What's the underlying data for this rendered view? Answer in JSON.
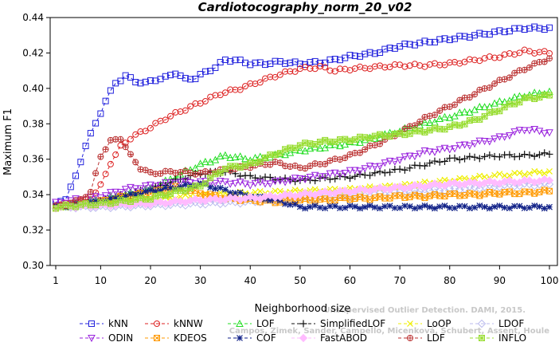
{
  "chart_data": {
    "type": "line",
    "title": "Cardiotocography_norm_20_v02",
    "xlabel": "Neighborhood size",
    "ylabel": "Maximum F1",
    "xlim": [
      1,
      100
    ],
    "ylim": [
      0.3,
      0.44
    ],
    "xticks": [
      1,
      10,
      20,
      30,
      40,
      50,
      60,
      70,
      80,
      90,
      100
    ],
    "yticks": [
      0.3,
      0.32,
      0.34,
      0.36,
      0.38,
      0.4,
      0.42,
      0.44
    ],
    "ytick_labels": [
      "0.30",
      "0.32",
      "0.34",
      "0.36",
      "0.38",
      "0.40",
      "0.42",
      "0.44"
    ],
    "grid": false,
    "legend_position": "bottom",
    "watermark": [
      "Campos, Zimek, Sander, Campello, Micenková, Schubert, Assent, Houle",
      "Unsupervised Outlier Detection. DAMI, 2015."
    ],
    "series": [
      {
        "name": "kNN",
        "color": "#2222dd",
        "marker": "square",
        "line": "dashed",
        "points": [
          [
            1,
            0.335
          ],
          [
            3,
            0.338
          ],
          [
            5,
            0.35
          ],
          [
            7,
            0.368
          ],
          [
            9,
            0.38
          ],
          [
            11,
            0.393
          ],
          [
            13,
            0.403
          ],
          [
            15,
            0.407
          ],
          [
            17,
            0.404
          ],
          [
            19,
            0.403
          ],
          [
            21,
            0.405
          ],
          [
            23,
            0.406
          ],
          [
            25,
            0.409
          ],
          [
            27,
            0.405
          ],
          [
            29,
            0.406
          ],
          [
            31,
            0.409
          ],
          [
            33,
            0.412
          ],
          [
            35,
            0.416
          ],
          [
            37,
            0.416
          ],
          [
            40,
            0.414
          ],
          [
            43,
            0.414
          ],
          [
            46,
            0.415
          ],
          [
            50,
            0.414
          ],
          [
            55,
            0.415
          ],
          [
            60,
            0.418
          ],
          [
            65,
            0.42
          ],
          [
            70,
            0.424
          ],
          [
            75,
            0.426
          ],
          [
            80,
            0.428
          ],
          [
            85,
            0.43
          ],
          [
            90,
            0.432
          ],
          [
            95,
            0.434
          ],
          [
            100,
            0.434
          ]
        ]
      },
      {
        "name": "kNNW",
        "color": "#dd2222",
        "marker": "circle",
        "line": "dashed",
        "points": [
          [
            1,
            0.334
          ],
          [
            5,
            0.335
          ],
          [
            8,
            0.338
          ],
          [
            10,
            0.345
          ],
          [
            12,
            0.358
          ],
          [
            14,
            0.367
          ],
          [
            16,
            0.372
          ],
          [
            18,
            0.375
          ],
          [
            20,
            0.378
          ],
          [
            23,
            0.383
          ],
          [
            26,
            0.387
          ],
          [
            30,
            0.392
          ],
          [
            34,
            0.397
          ],
          [
            38,
            0.4
          ],
          [
            42,
            0.404
          ],
          [
            46,
            0.408
          ],
          [
            50,
            0.411
          ],
          [
            54,
            0.412
          ],
          [
            57,
            0.41
          ],
          [
            60,
            0.411
          ],
          [
            65,
            0.412
          ],
          [
            70,
            0.413
          ],
          [
            75,
            0.413
          ],
          [
            80,
            0.414
          ],
          [
            85,
            0.416
          ],
          [
            90,
            0.418
          ],
          [
            95,
            0.421
          ],
          [
            100,
            0.42
          ]
        ]
      },
      {
        "name": "LOF",
        "color": "#22dd22",
        "marker": "triangle-up",
        "line": "dashed",
        "points": [
          [
            1,
            0.333
          ],
          [
            10,
            0.337
          ],
          [
            20,
            0.343
          ],
          [
            25,
            0.35
          ],
          [
            30,
            0.357
          ],
          [
            35,
            0.362
          ],
          [
            40,
            0.36
          ],
          [
            45,
            0.362
          ],
          [
            50,
            0.365
          ],
          [
            55,
            0.367
          ],
          [
            60,
            0.369
          ],
          [
            65,
            0.372
          ],
          [
            70,
            0.376
          ],
          [
            75,
            0.38
          ],
          [
            80,
            0.384
          ],
          [
            85,
            0.388
          ],
          [
            90,
            0.392
          ],
          [
            95,
            0.396
          ],
          [
            100,
            0.398
          ]
        ]
      },
      {
        "name": "SimplifiedLOF",
        "color": "#111111",
        "marker": "plus",
        "line": "dashed",
        "points": [
          [
            1,
            0.333
          ],
          [
            5,
            0.334
          ],
          [
            10,
            0.336
          ],
          [
            15,
            0.34
          ],
          [
            20,
            0.343
          ],
          [
            25,
            0.348
          ],
          [
            30,
            0.352
          ],
          [
            35,
            0.353
          ],
          [
            40,
            0.35
          ],
          [
            45,
            0.349
          ],
          [
            50,
            0.348
          ],
          [
            55,
            0.349
          ],
          [
            60,
            0.35
          ],
          [
            65,
            0.352
          ],
          [
            70,
            0.354
          ],
          [
            75,
            0.357
          ],
          [
            80,
            0.36
          ],
          [
            85,
            0.361
          ],
          [
            90,
            0.362
          ],
          [
            95,
            0.362
          ],
          [
            100,
            0.363
          ]
        ]
      },
      {
        "name": "LoOP",
        "color": "#eeee00",
        "marker": "x",
        "line": "dashed",
        "points": [
          [
            1,
            0.333
          ],
          [
            10,
            0.335
          ],
          [
            20,
            0.337
          ],
          [
            30,
            0.34
          ],
          [
            40,
            0.341
          ],
          [
            50,
            0.342
          ],
          [
            60,
            0.343
          ],
          [
            70,
            0.345
          ],
          [
            80,
            0.348
          ],
          [
            90,
            0.351
          ],
          [
            100,
            0.353
          ]
        ]
      },
      {
        "name": "LDOF",
        "color": "#bbbbee",
        "marker": "diamond",
        "line": "dashed",
        "points": [
          [
            1,
            0.333
          ],
          [
            10,
            0.333
          ],
          [
            20,
            0.334
          ],
          [
            30,
            0.335
          ],
          [
            40,
            0.336
          ],
          [
            50,
            0.338
          ],
          [
            60,
            0.339
          ],
          [
            70,
            0.341
          ],
          [
            80,
            0.343
          ],
          [
            90,
            0.345
          ],
          [
            100,
            0.346
          ]
        ]
      },
      {
        "name": "ODIN",
        "color": "#9922dd",
        "marker": "triangle-down",
        "line": "dashed",
        "points": [
          [
            1,
            0.335
          ],
          [
            5,
            0.337
          ],
          [
            10,
            0.339
          ],
          [
            15,
            0.343
          ],
          [
            20,
            0.345
          ],
          [
            25,
            0.347
          ],
          [
            30,
            0.347
          ],
          [
            35,
            0.347
          ],
          [
            40,
            0.346
          ],
          [
            45,
            0.347
          ],
          [
            50,
            0.349
          ],
          [
            55,
            0.351
          ],
          [
            60,
            0.353
          ],
          [
            65,
            0.356
          ],
          [
            70,
            0.36
          ],
          [
            75,
            0.364
          ],
          [
            80,
            0.366
          ],
          [
            85,
            0.369
          ],
          [
            90,
            0.372
          ],
          [
            95,
            0.377
          ],
          [
            100,
            0.375
          ]
        ]
      },
      {
        "name": "KDEOS",
        "color": "#ff9900",
        "marker": "square-x",
        "line": "dashed",
        "points": [
          [
            1,
            0.333
          ],
          [
            5,
            0.334
          ],
          [
            10,
            0.336
          ],
          [
            15,
            0.339
          ],
          [
            20,
            0.341
          ],
          [
            25,
            0.344
          ],
          [
            30,
            0.341
          ],
          [
            35,
            0.338
          ],
          [
            40,
            0.337
          ],
          [
            45,
            0.336
          ],
          [
            50,
            0.337
          ],
          [
            55,
            0.337
          ],
          [
            60,
            0.338
          ],
          [
            65,
            0.338
          ],
          [
            70,
            0.339
          ],
          [
            75,
            0.339
          ],
          [
            80,
            0.34
          ],
          [
            85,
            0.34
          ],
          [
            90,
            0.341
          ],
          [
            95,
            0.341
          ],
          [
            100,
            0.342
          ]
        ]
      },
      {
        "name": "COF",
        "color": "#112288",
        "marker": "asterisk",
        "line": "dashed",
        "points": [
          [
            1,
            0.333
          ],
          [
            10,
            0.336
          ],
          [
            20,
            0.342
          ],
          [
            30,
            0.346
          ],
          [
            40,
            0.339
          ],
          [
            45,
            0.337
          ],
          [
            50,
            0.333
          ],
          [
            60,
            0.333
          ],
          [
            70,
            0.333
          ],
          [
            80,
            0.333
          ],
          [
            90,
            0.333
          ],
          [
            100,
            0.333
          ]
        ]
      },
      {
        "name": "FastABOD",
        "color": "#ffbbff",
        "marker": "diamond-filled",
        "line": "dashed",
        "points": [
          [
            1,
            0.333
          ],
          [
            10,
            0.334
          ],
          [
            20,
            0.335
          ],
          [
            30,
            0.337
          ],
          [
            40,
            0.338
          ],
          [
            50,
            0.34
          ],
          [
            60,
            0.342
          ],
          [
            70,
            0.344
          ],
          [
            80,
            0.346
          ],
          [
            90,
            0.347
          ],
          [
            100,
            0.348
          ]
        ]
      },
      {
        "name": "LDF",
        "color": "#bb3333",
        "marker": "circle-plus",
        "line": "dashed",
        "points": [
          [
            1,
            0.333
          ],
          [
            5,
            0.336
          ],
          [
            8,
            0.341
          ],
          [
            10,
            0.362
          ],
          [
            12,
            0.37
          ],
          [
            14,
            0.372
          ],
          [
            16,
            0.362
          ],
          [
            18,
            0.355
          ],
          [
            20,
            0.352
          ],
          [
            25,
            0.353
          ],
          [
            30,
            0.352
          ],
          [
            35,
            0.354
          ],
          [
            40,
            0.356
          ],
          [
            45,
            0.358
          ],
          [
            50,
            0.355
          ],
          [
            55,
            0.358
          ],
          [
            60,
            0.362
          ],
          [
            65,
            0.368
          ],
          [
            70,
            0.375
          ],
          [
            75,
            0.383
          ],
          [
            80,
            0.39
          ],
          [
            85,
            0.397
          ],
          [
            90,
            0.404
          ],
          [
            95,
            0.411
          ],
          [
            100,
            0.417
          ]
        ]
      },
      {
        "name": "INFLO",
        "color": "#99dd33",
        "marker": "square-star",
        "line": "dashed",
        "points": [
          [
            1,
            0.333
          ],
          [
            10,
            0.335
          ],
          [
            20,
            0.338
          ],
          [
            30,
            0.345
          ],
          [
            35,
            0.355
          ],
          [
            40,
            0.357
          ],
          [
            45,
            0.363
          ],
          [
            50,
            0.368
          ],
          [
            55,
            0.37
          ],
          [
            60,
            0.371
          ],
          [
            65,
            0.373
          ],
          [
            70,
            0.374
          ],
          [
            75,
            0.376
          ],
          [
            80,
            0.378
          ],
          [
            85,
            0.382
          ],
          [
            90,
            0.388
          ],
          [
            95,
            0.394
          ],
          [
            100,
            0.396
          ]
        ]
      }
    ]
  }
}
